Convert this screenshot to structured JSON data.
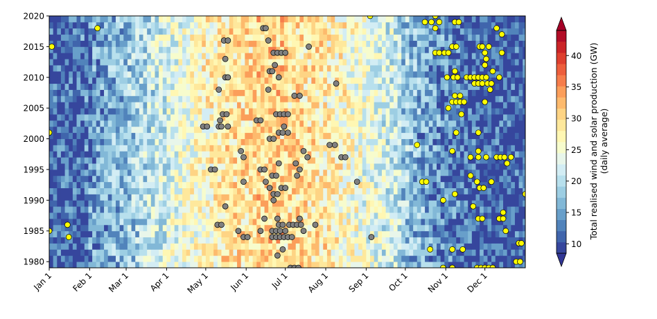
{
  "chart_data": {
    "type": "heatmap",
    "title": "",
    "xlabel": "",
    "ylabel": "",
    "x_tick_labels": [
      "Jan 1",
      "Feb 1",
      "Mar 1",
      "Apr 1",
      "May 1",
      "Jun 1",
      "Jul 1",
      "Aug 1",
      "Sep 1",
      "Oct 1",
      "Nov 1",
      "Dec 1"
    ],
    "x_tick_days": [
      1,
      32,
      60,
      91,
      121,
      152,
      182,
      213,
      244,
      274,
      305,
      335
    ],
    "xlim": [
      1,
      366
    ],
    "y_tick_labels": [
      "1980",
      "1985",
      "1990",
      "1995",
      "2000",
      "2005",
      "2010",
      "2015",
      "2020"
    ],
    "y_tick_values": [
      1980,
      1985,
      1990,
      1995,
      2000,
      2005,
      2010,
      2015,
      2020
    ],
    "ylim": [
      1979,
      2020
    ],
    "colorbar": {
      "label_line1": "Total realised wind and solar production (GW)",
      "label_line2": "(daily average)",
      "ticks": [
        "10",
        "15",
        "20",
        "25",
        "30",
        "35",
        "40"
      ],
      "range": [
        8.5,
        44
      ],
      "extend": "both",
      "colormap": "RdYlBu_r"
    },
    "marker_colors": {
      "low_production_days": "#ffff00",
      "high_production_days": "#808080"
    },
    "low_production_days": [
      {
        "day": 1,
        "year": 2001
      },
      {
        "day": 3,
        "year": 2015
      },
      {
        "day": 1,
        "year": 1985
      },
      {
        "day": 15,
        "year": 1986
      },
      {
        "day": 16,
        "year": 1984
      },
      {
        "day": 38,
        "year": 2018
      },
      {
        "day": 247,
        "year": 2020
      },
      {
        "day": 283,
        "year": 1999
      },
      {
        "day": 289,
        "year": 2019
      },
      {
        "day": 294,
        "year": 2019
      },
      {
        "day": 297,
        "year": 2020
      },
      {
        "day": 297,
        "year": 2018
      },
      {
        "day": 300,
        "year": 2019
      },
      {
        "day": 297,
        "year": 2014
      },
      {
        "day": 300,
        "year": 2014
      },
      {
        "day": 304,
        "year": 2014
      },
      {
        "day": 307,
        "year": 2014
      },
      {
        "day": 310,
        "year": 2015
      },
      {
        "day": 313,
        "year": 2015
      },
      {
        "day": 312,
        "year": 2019
      },
      {
        "day": 315,
        "year": 2019
      },
      {
        "day": 307,
        "year": 2005
      },
      {
        "day": 306,
        "year": 2010
      },
      {
        "day": 311,
        "year": 2010
      },
      {
        "day": 314,
        "year": 2010
      },
      {
        "day": 312,
        "year": 2011
      },
      {
        "day": 310,
        "year": 2006
      },
      {
        "day": 313,
        "year": 2006
      },
      {
        "day": 316,
        "year": 2006
      },
      {
        "day": 319,
        "year": 2006
      },
      {
        "day": 312,
        "year": 2007
      },
      {
        "day": 316,
        "year": 2007
      },
      {
        "day": 317,
        "year": 2004
      },
      {
        "day": 321,
        "year": 2010
      },
      {
        "day": 324,
        "year": 2010
      },
      {
        "day": 327,
        "year": 2010
      },
      {
        "day": 330,
        "year": 2010
      },
      {
        "day": 333,
        "year": 2010
      },
      {
        "day": 336,
        "year": 2010
      },
      {
        "day": 327,
        "year": 2009
      },
      {
        "day": 330,
        "year": 2009
      },
      {
        "day": 333,
        "year": 2009
      },
      {
        "day": 337,
        "year": 2009
      },
      {
        "day": 336,
        "year": 2013
      },
      {
        "day": 335,
        "year": 2012
      },
      {
        "day": 331,
        "year": 2015
      },
      {
        "day": 333,
        "year": 2015
      },
      {
        "day": 335,
        "year": 2014
      },
      {
        "day": 338,
        "year": 2015
      },
      {
        "day": 339,
        "year": 2008
      },
      {
        "day": 344,
        "year": 2018
      },
      {
        "day": 348,
        "year": 2017
      },
      {
        "day": 348,
        "year": 2014
      },
      {
        "day": 341,
        "year": 2011
      },
      {
        "day": 346,
        "year": 2010
      },
      {
        "day": 340,
        "year": 2009
      },
      {
        "day": 335,
        "year": 2006
      },
      {
        "day": 330,
        "year": 2001
      },
      {
        "day": 313,
        "year": 2001
      },
      {
        "day": 310,
        "year": 1998
      },
      {
        "day": 324,
        "year": 1994
      },
      {
        "day": 329,
        "year": 1993
      },
      {
        "day": 331,
        "year": 1992
      },
      {
        "day": 334,
        "year": 1992
      },
      {
        "day": 330,
        "year": 1998
      },
      {
        "day": 330,
        "year": 1997
      },
      {
        "day": 336,
        "year": 1997
      },
      {
        "day": 324,
        "year": 1997
      },
      {
        "day": 344,
        "year": 1997
      },
      {
        "day": 347,
        "year": 1997
      },
      {
        "day": 350,
        "year": 1997
      },
      {
        "day": 355,
        "year": 1997
      },
      {
        "day": 352,
        "year": 1996
      },
      {
        "day": 340,
        "year": 1993
      },
      {
        "day": 312,
        "year": 1991
      },
      {
        "day": 303,
        "year": 1990
      },
      {
        "day": 326,
        "year": 1989
      },
      {
        "day": 330,
        "year": 1987
      },
      {
        "day": 333,
        "year": 1987
      },
      {
        "day": 346,
        "year": 1987
      },
      {
        "day": 349,
        "year": 1987
      },
      {
        "day": 349,
        "year": 1988
      },
      {
        "day": 351,
        "year": 1985
      },
      {
        "day": 361,
        "year": 1983
      },
      {
        "day": 363,
        "year": 1983
      },
      {
        "day": 359,
        "year": 1980
      },
      {
        "day": 362,
        "year": 1980
      },
      {
        "day": 366,
        "year": 1991
      },
      {
        "day": 287,
        "year": 1993
      },
      {
        "day": 290,
        "year": 1993
      },
      {
        "day": 293,
        "year": 1982
      },
      {
        "day": 310,
        "year": 1982
      },
      {
        "day": 318,
        "year": 1982
      },
      {
        "day": 303,
        "year": 1979
      },
      {
        "day": 310,
        "year": 1979
      },
      {
        "day": 329,
        "year": 1979
      },
      {
        "day": 332,
        "year": 1979
      },
      {
        "day": 335,
        "year": 1979
      },
      {
        "day": 338,
        "year": 1979
      },
      {
        "day": 341,
        "year": 1979
      }
    ],
    "high_production_days": [
      {
        "day": 119,
        "year": 2002
      },
      {
        "day": 122,
        "year": 2002
      },
      {
        "day": 138,
        "year": 2002
      },
      {
        "day": 131,
        "year": 2002
      },
      {
        "day": 133,
        "year": 2002
      },
      {
        "day": 132,
        "year": 2003
      },
      {
        "day": 134,
        "year": 2004
      },
      {
        "day": 137,
        "year": 2004
      },
      {
        "day": 131,
        "year": 2008
      },
      {
        "day": 136,
        "year": 2010
      },
      {
        "day": 138,
        "year": 2010
      },
      {
        "day": 136,
        "year": 2013
      },
      {
        "day": 135,
        "year": 2016
      },
      {
        "day": 138,
        "year": 2016
      },
      {
        "day": 165,
        "year": 2018
      },
      {
        "day": 167,
        "year": 2018
      },
      {
        "day": 169,
        "year": 2016
      },
      {
        "day": 173,
        "year": 2014
      },
      {
        "day": 176,
        "year": 2014
      },
      {
        "day": 179,
        "year": 2014
      },
      {
        "day": 182,
        "year": 2014
      },
      {
        "day": 174,
        "year": 2012
      },
      {
        "day": 170,
        "year": 2011
      },
      {
        "day": 172,
        "year": 2011
      },
      {
        "day": 169,
        "year": 2008
      },
      {
        "day": 177,
        "year": 2010
      },
      {
        "day": 189,
        "year": 2007
      },
      {
        "day": 193,
        "year": 2007
      },
      {
        "day": 200,
        "year": 2015
      },
      {
        "day": 221,
        "year": 2009
      },
      {
        "day": 175,
        "year": 2004
      },
      {
        "day": 178,
        "year": 2004
      },
      {
        "day": 181,
        "year": 2004
      },
      {
        "day": 184,
        "year": 2004
      },
      {
        "day": 160,
        "year": 2003
      },
      {
        "day": 163,
        "year": 2003
      },
      {
        "day": 177,
        "year": 2001
      },
      {
        "day": 180,
        "year": 2001
      },
      {
        "day": 184,
        "year": 2001
      },
      {
        "day": 181,
        "year": 2002
      },
      {
        "day": 170,
        "year": 2000
      },
      {
        "day": 173,
        "year": 2000
      },
      {
        "day": 148,
        "year": 1998
      },
      {
        "day": 150,
        "year": 1997
      },
      {
        "day": 196,
        "year": 1998
      },
      {
        "day": 199,
        "year": 1997
      },
      {
        "day": 216,
        "year": 1999
      },
      {
        "day": 220,
        "year": 1999
      },
      {
        "day": 225,
        "year": 1997
      },
      {
        "day": 228,
        "year": 1997
      },
      {
        "day": 190,
        "year": 1996
      },
      {
        "day": 193,
        "year": 1995
      },
      {
        "day": 191,
        "year": 1994
      },
      {
        "day": 177,
        "year": 1996
      },
      {
        "day": 172,
        "year": 1994
      },
      {
        "day": 175,
        "year": 1994
      },
      {
        "day": 163,
        "year": 1995
      },
      {
        "day": 166,
        "year": 1995
      },
      {
        "day": 125,
        "year": 1995
      },
      {
        "day": 128,
        "year": 1995
      },
      {
        "day": 150,
        "year": 1993
      },
      {
        "day": 173,
        "year": 1991
      },
      {
        "day": 176,
        "year": 1991
      },
      {
        "day": 179,
        "year": 1992
      },
      {
        "day": 182,
        "year": 1992
      },
      {
        "day": 173,
        "year": 1990
      },
      {
        "day": 237,
        "year": 1993
      },
      {
        "day": 136,
        "year": 1989
      },
      {
        "day": 130,
        "year": 1986
      },
      {
        "day": 133,
        "year": 1986
      },
      {
        "day": 146,
        "year": 1985
      },
      {
        "day": 150,
        "year": 1984
      },
      {
        "day": 153,
        "year": 1984
      },
      {
        "day": 163,
        "year": 1985
      },
      {
        "day": 166,
        "year": 1987
      },
      {
        "day": 172,
        "year": 1985
      },
      {
        "day": 175,
        "year": 1985
      },
      {
        "day": 178,
        "year": 1985
      },
      {
        "day": 172,
        "year": 1984
      },
      {
        "day": 175,
        "year": 1984
      },
      {
        "day": 178,
        "year": 1984
      },
      {
        "day": 181,
        "year": 1984
      },
      {
        "day": 184,
        "year": 1984
      },
      {
        "day": 187,
        "year": 1984
      },
      {
        "day": 176,
        "year": 1987
      },
      {
        "day": 177,
        "year": 1986
      },
      {
        "day": 180,
        "year": 1986
      },
      {
        "day": 182,
        "year": 1985
      },
      {
        "day": 185,
        "year": 1986
      },
      {
        "day": 188,
        "year": 1986
      },
      {
        "day": 191,
        "year": 1986
      },
      {
        "day": 194,
        "year": 1986
      },
      {
        "day": 193,
        "year": 1987
      },
      {
        "day": 196,
        "year": 1985
      },
      {
        "day": 205,
        "year": 1986
      },
      {
        "day": 180,
        "year": 1982
      },
      {
        "day": 176,
        "year": 1981
      },
      {
        "day": 186,
        "year": 1979
      },
      {
        "day": 189,
        "year": 1979
      },
      {
        "day": 192,
        "year": 1979
      },
      {
        "day": 248,
        "year": 1984
      },
      {
        "day": 170,
        "year": 1992
      },
      {
        "day": 167,
        "year": 1993
      }
    ]
  }
}
